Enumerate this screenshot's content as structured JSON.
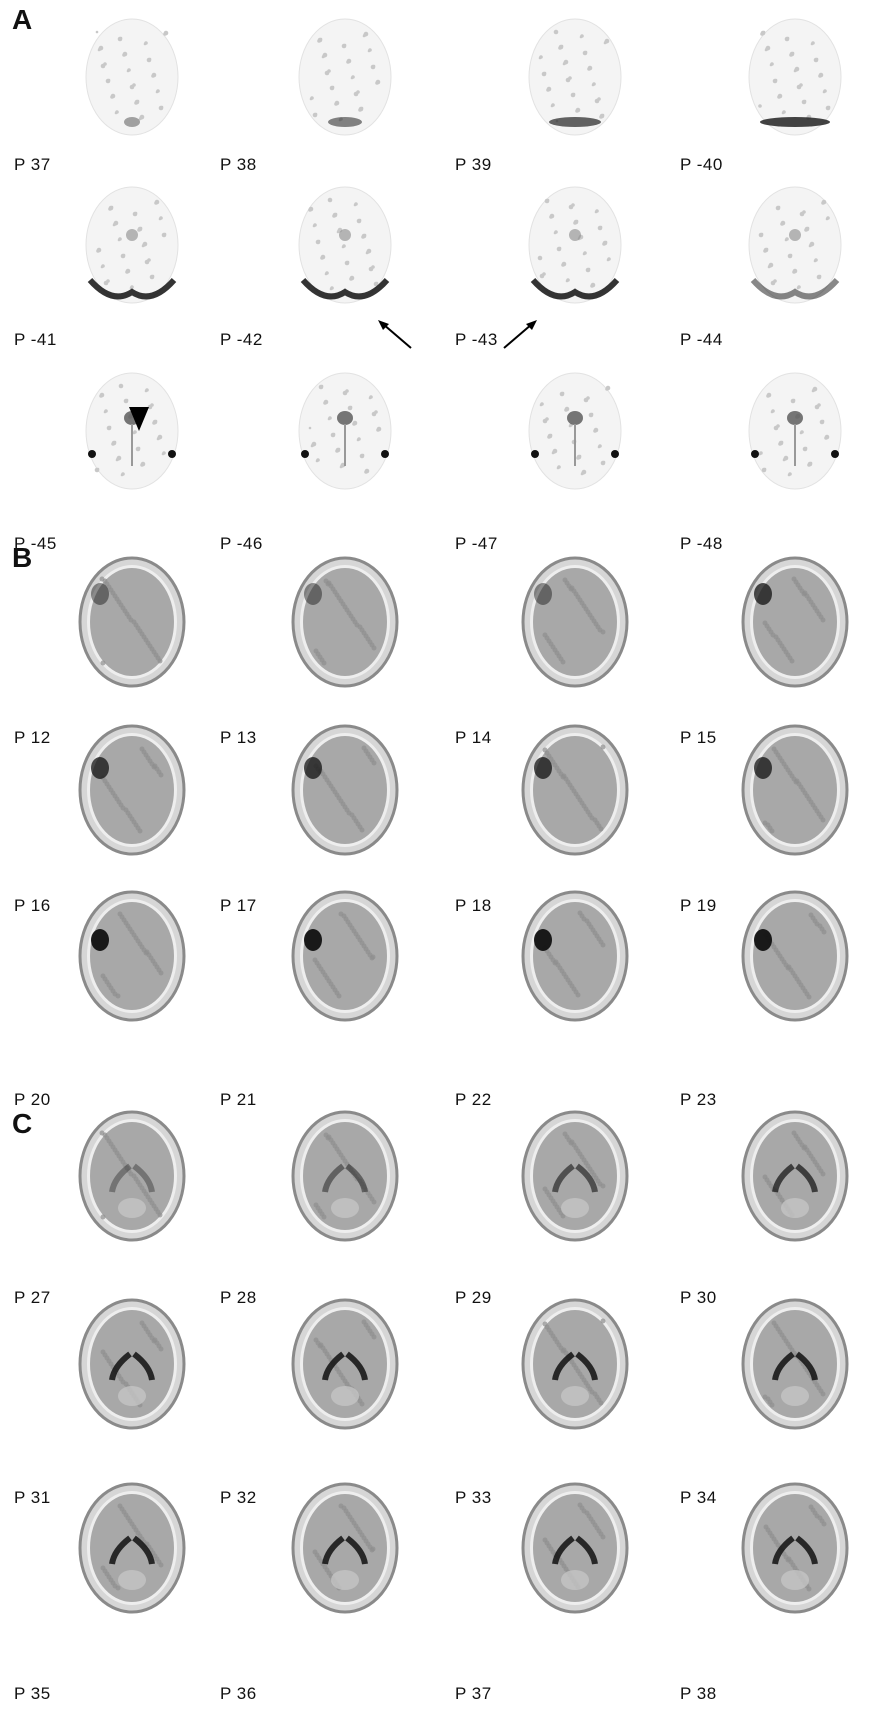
{
  "panels": [
    {
      "letter": "A",
      "style": "sparse",
      "slices": [
        "P 37",
        "P 38",
        "P 39",
        "P -40",
        "P -41",
        "P -42",
        "P -43",
        "P -44",
        "P -45",
        "P -46",
        "P -47",
        "P -48"
      ]
    },
    {
      "letter": "B",
      "style": "lesion",
      "slices": [
        "P 12",
        "P 13",
        "P 14",
        "P 15",
        "P 16",
        "P 17",
        "P 18",
        "P 19",
        "P 20",
        "P 21",
        "P 22",
        "P 23"
      ]
    },
    {
      "letter": "C",
      "style": "ventricles",
      "slices": [
        "P 27",
        "P 28",
        "P 29",
        "P 30",
        "P 31",
        "P 32",
        "P 33",
        "P 34",
        "P 35",
        "P 36",
        "P 37",
        "P 38"
      ]
    }
  ],
  "annotations": {
    "arrows": [
      "arrow",
      "arrow"
    ],
    "arrowhead": "arrowhead"
  }
}
